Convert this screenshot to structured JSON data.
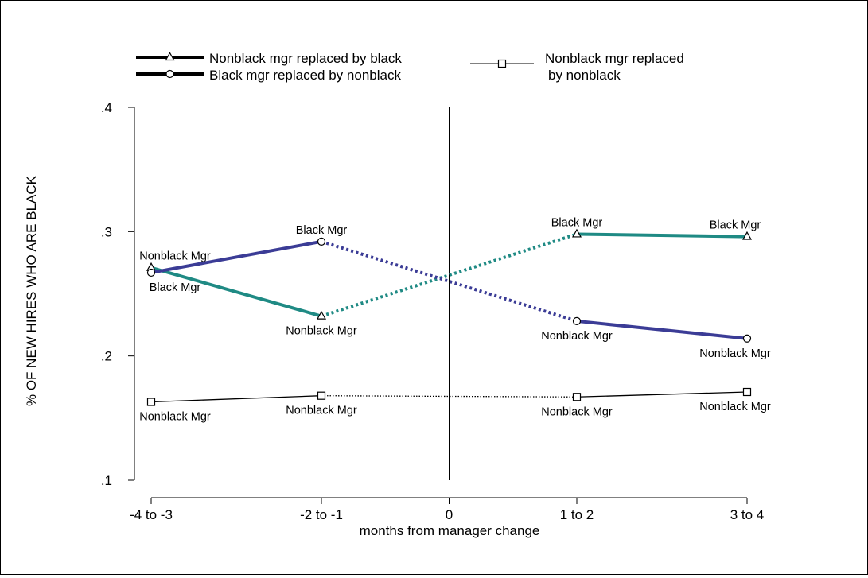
{
  "chart_data": {
    "type": "line",
    "xlabel": "months from manager change",
    "ylabel": "% OF NEW HIRES WHO ARE BLACK",
    "x_ticks": [
      {
        "value": -3.5,
        "label": "-4 to -3"
      },
      {
        "value": -1.5,
        "label": "-2 to -1"
      },
      {
        "value": 0,
        "label": "0"
      },
      {
        "value": 1.5,
        "label": "1 to 2"
      },
      {
        "value": 3.5,
        "label": "3 to 4"
      }
    ],
    "y_ticks": [
      {
        "value": 0.1,
        "label": ".1"
      },
      {
        "value": 0.2,
        "label": ".2"
      },
      {
        "value": 0.3,
        "label": ".3"
      },
      {
        "value": 0.4,
        "label": ".4"
      }
    ],
    "xlim": [
      -3.5,
      3.5
    ],
    "ylim": [
      0.1,
      0.4
    ],
    "grid": false,
    "legend_position": "top",
    "vertical_reference_line_x": 0,
    "series": [
      {
        "name": "Nonblack mgr replaced by black",
        "color": "#1f8a84",
        "marker": "triangle",
        "points": [
          {
            "x": -3.5,
            "y": 0.271,
            "label": "Nonblack Mgr",
            "label_pos": "above"
          },
          {
            "x": -1.5,
            "y": 0.232,
            "label": "Nonblack Mgr",
            "label_pos": "below"
          },
          {
            "x": 1.5,
            "y": 0.298,
            "label": "Black Mgr",
            "label_pos": "above"
          },
          {
            "x": 3.5,
            "y": 0.296,
            "label": "Black Mgr",
            "label_pos": "above"
          }
        ]
      },
      {
        "name": "Black mgr replaced by nonblack",
        "color": "#3b3c96",
        "marker": "circle",
        "points": [
          {
            "x": -3.5,
            "y": 0.267,
            "label": "Black Mgr",
            "label_pos": "below"
          },
          {
            "x": -1.5,
            "y": 0.292,
            "label": "Black Mgr",
            "label_pos": "above"
          },
          {
            "x": 1.5,
            "y": 0.228,
            "label": "Nonblack Mgr",
            "label_pos": "below"
          },
          {
            "x": 3.5,
            "y": 0.214,
            "label": "Nonblack Mgr",
            "label_pos": "below"
          }
        ]
      },
      {
        "name": "Nonblack mgr replaced by nonblack",
        "color": "#000000",
        "marker": "square",
        "points": [
          {
            "x": -3.5,
            "y": 0.163,
            "label": "Nonblack Mgr",
            "label_pos": "below"
          },
          {
            "x": -1.5,
            "y": 0.168,
            "label": "Nonblack Mgr",
            "label_pos": "below"
          },
          {
            "x": 1.5,
            "y": 0.167,
            "label": "Nonblack Mgr",
            "label_pos": "below"
          },
          {
            "x": 3.5,
            "y": 0.171,
            "label": "Nonblack Mgr",
            "label_pos": "below"
          }
        ]
      }
    ],
    "legend": [
      {
        "lines": [
          "Nonblack mgr replaced by black"
        ],
        "marker": "triangle"
      },
      {
        "lines": [
          "Black mgr replaced by nonblack"
        ],
        "marker": "circle"
      },
      {
        "lines": [
          "Nonblack mgr replaced",
          "by nonblack"
        ],
        "marker": "square"
      }
    ]
  }
}
